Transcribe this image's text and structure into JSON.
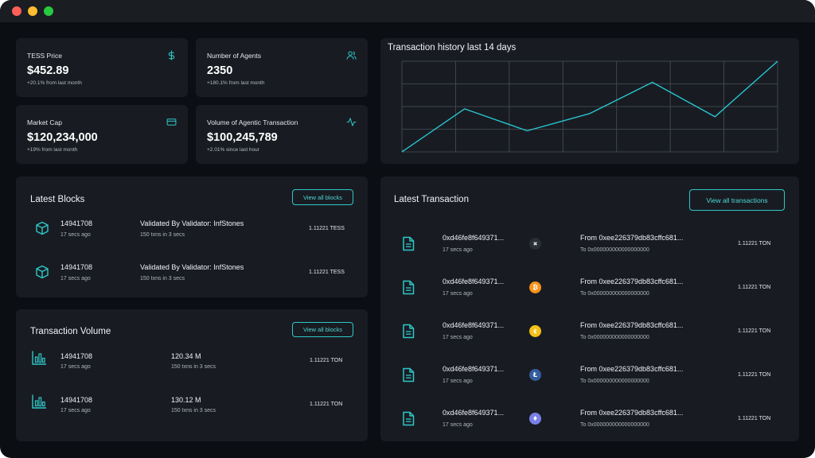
{
  "stats": {
    "price": {
      "title": "TESS Price",
      "value": "$452.89",
      "sub": "+20.1% from last month",
      "icon": "dollar-icon"
    },
    "agents": {
      "title": "Number of Agents",
      "value": "2350",
      "sub": "+180.1% from last month",
      "icon": "users-icon"
    },
    "market_cap": {
      "title": "Market Cap",
      "value": "$120,234,000",
      "sub": "+19% from last month",
      "icon": "credit-card-icon"
    },
    "volume": {
      "title": "Volume of Agentic Transaction",
      "value": "$100,245,789",
      "sub": "+2.01% since last hour",
      "icon": "activity-icon"
    }
  },
  "chart": {
    "title": "Transaction history last 14 days"
  },
  "chart_data": {
    "type": "line",
    "title": "Transaction history last 14 days",
    "x": [
      0,
      1,
      2,
      3,
      4,
      5,
      6
    ],
    "values": [
      0,
      55,
      27,
      49,
      89,
      45,
      116
    ],
    "ylim": [
      0,
      116
    ],
    "grid": true,
    "color": "#29c5cf"
  },
  "blocks": {
    "title": "Latest Blocks",
    "button": "View all blocks",
    "rows": [
      {
        "id": "14941708",
        "time": "17 secs ago",
        "validator": "Validated By Validator: InfStones",
        "txns": "150 txns in 3 secs",
        "amount": "1.11221 TESS"
      },
      {
        "id": "14941708",
        "time": "17 secs ago",
        "validator": "Validated By Validator: InfStones",
        "txns": "150 txns in 3 secs",
        "amount": "1.11221 TESS"
      }
    ]
  },
  "volume": {
    "title": "Transaction Volume",
    "button": "View all blocks",
    "rows": [
      {
        "id": "14941708",
        "time": "17 secs ago",
        "value": "120.34 M",
        "txns": "150 txns in 3 secs",
        "amount": "1.11221 TON"
      },
      {
        "id": "14941708",
        "time": "17 secs ago",
        "value": "130.12 M",
        "txns": "150 txns in 3 secs",
        "amount": "1.11221 TON"
      }
    ]
  },
  "transactions": {
    "title": "Latest Transaction",
    "button": "View all transactions",
    "rows": [
      {
        "hash": "0xd46fe8f649371...",
        "time": "17 secs ago",
        "coin": "x-coin-icon",
        "coin_color": "#2a2e35",
        "from": "From 0xee226379db83cffc681...",
        "to": "To 0x000000000000000000",
        "amount": "1.11221 TON"
      },
      {
        "hash": "0xd46fe8f649371...",
        "time": "17 secs ago",
        "coin": "bitcoin-icon",
        "coin_color": "#f7931a",
        "from": "From 0xee226379db83cffc681...",
        "to": "To 0x000000000000000000",
        "amount": "1.11221 TON"
      },
      {
        "hash": "0xd46fe8f649371...",
        "time": "17 secs ago",
        "coin": "cent-coin-icon",
        "coin_color": "#f5c116",
        "from": "From 0xee226379db83cffc681...",
        "to": "To 0x000000000000000000",
        "amount": "1.11221 TON"
      },
      {
        "hash": "0xd46fe8f649371...",
        "time": "17 secs ago",
        "coin": "litecoin-icon",
        "coin_color": "#345d9d",
        "from": "From 0xee226379db83cffc681...",
        "to": "To 0x000000000000000000",
        "amount": "1.11221 TON"
      },
      {
        "hash": "0xd46fe8f649371...",
        "time": "17 secs ago",
        "coin": "ethereum-icon",
        "coin_color": "#7a80e8",
        "from": "From 0xee226379db83cffc681...",
        "to": "To 0x000000000000000000",
        "amount": "1.11221 TON"
      }
    ]
  },
  "colors": {
    "accent": "#2fc7c7",
    "card": "#181c22",
    "background": "#0b0e13"
  }
}
